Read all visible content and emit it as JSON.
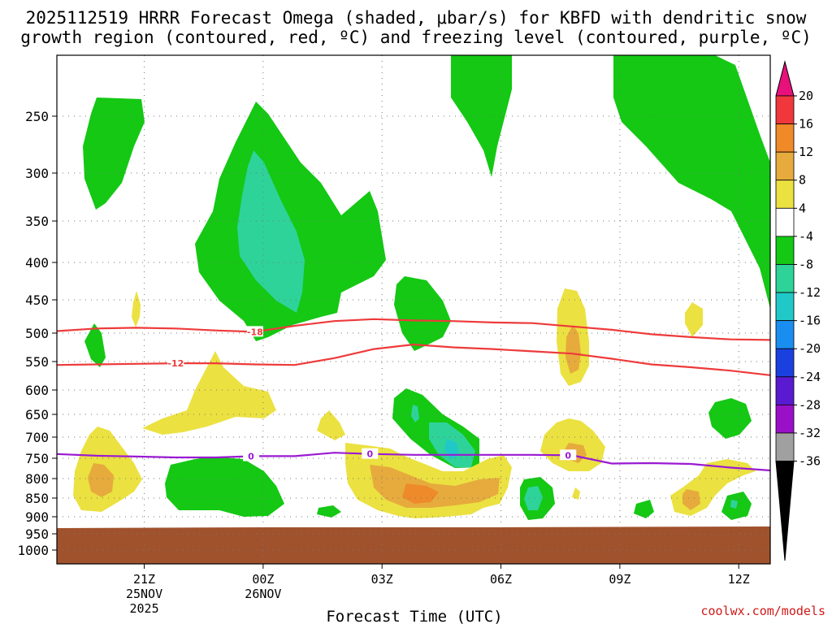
{
  "title": {
    "line1": "2025112519 HRRR Forecast Omega (shaded, μbar/s) for KBFD with dendritic snow",
    "line2": "growth region (contoured, red, ºC) and freezing level (contoured, purple, ºC)"
  },
  "credit": "coolwx.com/models",
  "colors": {
    "green": "#14c814",
    "dark_green_teal": "#2ed39a",
    "teal": "#20c8c8",
    "yellow": "#ebe141",
    "orange_light": "#e6ab3c",
    "orange": "#ee8a2a",
    "ground": "#a0522d",
    "red_contour": "#ee3a3a",
    "purple_contour": "#9a1ad2"
  },
  "chart_data": {
    "type": "heatmap",
    "xlabel": "Forecast Time (UTC)",
    "ylabel": "",
    "x_range_hours_utc_from_2025112519": [
      0,
      18
    ],
    "y_axis": "pressure (mb), inverted, log-like",
    "ylim": [
      1000,
      200
    ],
    "y_ticks": [
      250,
      300,
      350,
      400,
      450,
      500,
      550,
      600,
      650,
      700,
      750,
      800,
      850,
      900,
      950,
      1000
    ],
    "x_ticks": [
      {
        "hour": 2,
        "label": "21Z",
        "date": "25NOV",
        "year": "2025"
      },
      {
        "hour": 5,
        "label": "00Z",
        "date": "26NOV",
        "year": ""
      },
      {
        "hour": 8,
        "label": "03Z",
        "date": "",
        "year": ""
      },
      {
        "hour": 11,
        "label": "06Z",
        "date": "",
        "year": ""
      },
      {
        "hour": 14,
        "label": "09Z",
        "date": "",
        "year": ""
      },
      {
        "hour": 17,
        "label": "12Z",
        "date": "",
        "year": ""
      }
    ],
    "grid": true,
    "colorbar": {
      "levels": [
        20,
        16,
        12,
        8,
        4,
        -4,
        -8,
        -12,
        -16,
        -20,
        -24,
        -28,
        -32,
        -36
      ],
      "colors": [
        "#e8e8e8",
        "#f0383c",
        "#f08a28",
        "#e6ab3c",
        "#ebe141",
        "#ffffff",
        "#14c814",
        "#2ed39a",
        "#20c8c8",
        "#1a8ef0",
        "#1a40e0",
        "#5a1ad2",
        "#9a10c8",
        "#a0a0a0"
      ],
      "top_arrow_color": "#e8107a",
      "bottom_arrow_color": "#000000"
    },
    "contours": [
      {
        "name": "-18",
        "color": "#ee3a3a",
        "label": "-18",
        "points": [
          [
            0,
            497
          ],
          [
            1,
            493
          ],
          [
            2,
            492
          ],
          [
            3,
            493
          ],
          [
            4,
            496
          ],
          [
            5,
            498
          ],
          [
            6,
            489
          ],
          [
            7,
            482
          ],
          [
            8,
            479
          ],
          [
            9,
            481
          ],
          [
            10,
            482
          ],
          [
            11,
            484
          ],
          [
            12,
            485
          ],
          [
            13,
            490
          ],
          [
            14,
            495
          ],
          [
            15,
            502
          ],
          [
            16,
            507
          ],
          [
            17,
            511
          ],
          [
            18,
            512
          ]
        ]
      },
      {
        "name": "-12",
        "color": "#ee3a3a",
        "label": "-12",
        "points": [
          [
            0,
            556
          ],
          [
            1,
            555
          ],
          [
            2,
            554
          ],
          [
            3,
            553
          ],
          [
            4,
            553
          ],
          [
            5,
            555
          ],
          [
            6,
            556
          ],
          [
            7,
            544
          ],
          [
            8,
            528
          ],
          [
            9,
            520
          ],
          [
            10,
            525
          ],
          [
            11,
            528
          ],
          [
            12,
            532
          ],
          [
            13,
            536
          ],
          [
            14,
            545
          ],
          [
            15,
            555
          ],
          [
            16,
            560
          ],
          [
            17,
            566
          ],
          [
            18,
            574
          ]
        ]
      },
      {
        "name": "0",
        "color": "#9a1ad2",
        "label": "0",
        "points": [
          [
            0,
            740
          ],
          [
            1,
            744
          ],
          [
            2,
            746
          ],
          [
            3,
            748
          ],
          [
            4,
            748
          ],
          [
            5,
            745
          ],
          [
            6,
            745
          ],
          [
            7,
            737
          ],
          [
            8,
            740
          ],
          [
            9,
            742
          ],
          [
            10,
            742
          ],
          [
            11,
            742
          ],
          [
            12,
            742
          ],
          [
            13,
            743
          ],
          [
            14,
            763
          ],
          [
            15,
            762
          ],
          [
            16,
            764
          ],
          [
            17,
            773
          ],
          [
            18,
            780
          ]
        ]
      }
    ]
  }
}
